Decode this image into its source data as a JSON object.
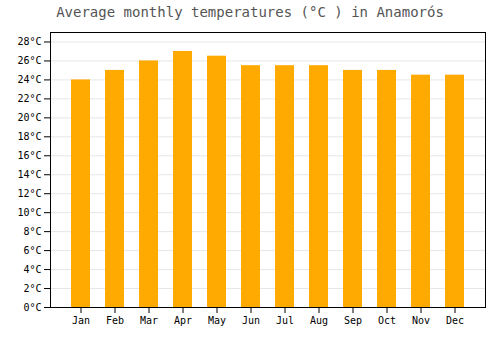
{
  "chart_data": {
    "type": "bar",
    "title": "Average monthly temperatures (°C ) in Anamorós",
    "categories": [
      "Jan",
      "Feb",
      "Mar",
      "Apr",
      "May",
      "Jun",
      "Jul",
      "Aug",
      "Sep",
      "Oct",
      "Nov",
      "Dec"
    ],
    "values": [
      24.0,
      25.0,
      26.0,
      27.0,
      26.5,
      25.5,
      25.5,
      25.5,
      25.0,
      25.0,
      24.5,
      24.5
    ],
    "color": "#FFAA00",
    "ylim": [
      0,
      29
    ],
    "yticks": [
      {
        "value": 0,
        "label": "0°C"
      },
      {
        "value": 2,
        "label": "2°C"
      },
      {
        "value": 4,
        "label": "4°C"
      },
      {
        "value": 6,
        "label": "6°C"
      },
      {
        "value": 8,
        "label": "8°C"
      },
      {
        "value": 10,
        "label": "10°C"
      },
      {
        "value": 12,
        "label": "12°C"
      },
      {
        "value": 14,
        "label": "14°C"
      },
      {
        "value": 16,
        "label": "16°C"
      },
      {
        "value": 18,
        "label": "18°C"
      },
      {
        "value": 20,
        "label": "20°C"
      },
      {
        "value": 22,
        "label": "22°C"
      },
      {
        "value": 24,
        "label": "24°C"
      },
      {
        "value": 26,
        "label": "26°C"
      },
      {
        "value": 28,
        "label": "28°C"
      }
    ],
    "grid": true
  }
}
